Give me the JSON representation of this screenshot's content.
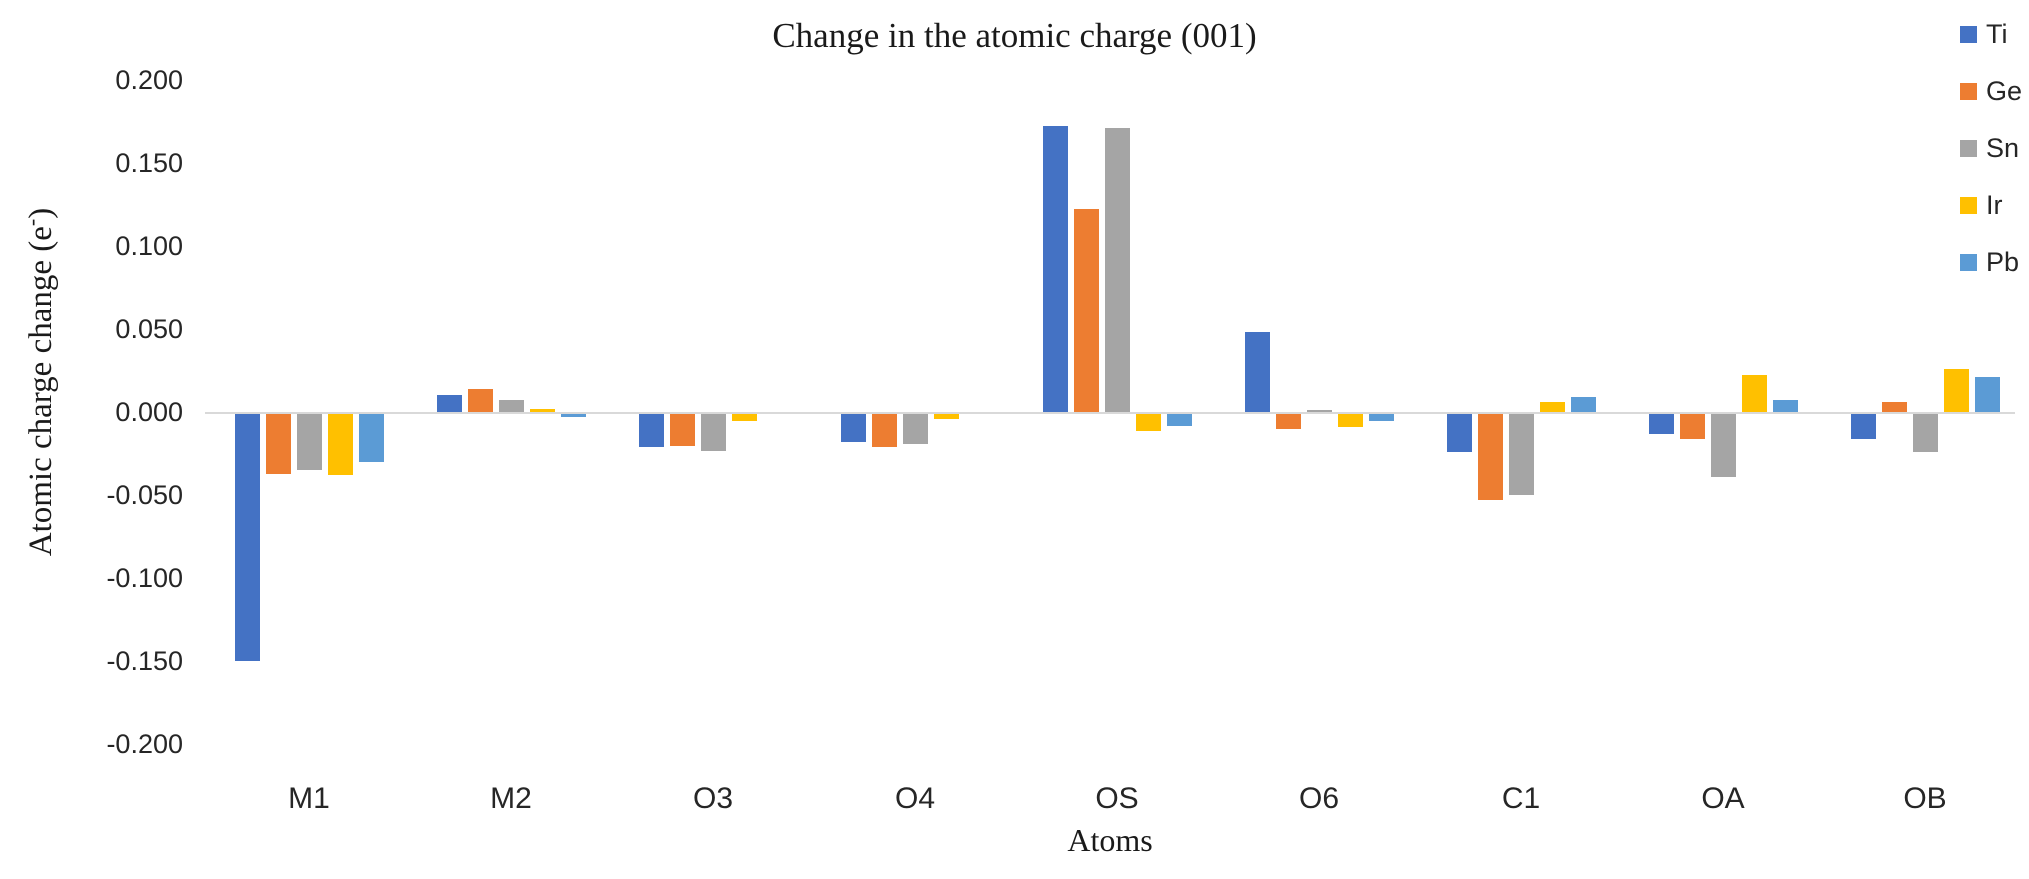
{
  "title": "Change in the atomic charge (001)",
  "y_axis": {
    "pre": "Atomic charge change (e",
    "sup": "-",
    "post": ")"
  },
  "x_axis_title": "Atoms",
  "colors": {
    "ti_blue": "#4472C4",
    "ge_orange": "#ED7D31",
    "sn_gray": "#A5A5A5",
    "ir_gold": "#FFC000",
    "pb_lightblue": "#5B9BD5",
    "axis_line": "#D9D9D9",
    "text": "#262626"
  },
  "chart_data": {
    "type": "bar",
    "title": "Change in the atomic charge (001)",
    "xlabel": "Atoms",
    "ylabel": "Atomic charge change (e-)",
    "categories": [
      "M1",
      "M2",
      "O3",
      "O4",
      "OS",
      "O6",
      "C1",
      "OA",
      "OB"
    ],
    "series": [
      {
        "name": "Ti",
        "color": "#4472C4",
        "values": [
          -0.149,
          0.01,
          -0.02,
          -0.017,
          0.172,
          0.048,
          -0.023,
          -0.012,
          -0.015
        ]
      },
      {
        "name": "Ge",
        "color": "#ED7D31",
        "values": [
          -0.036,
          0.014,
          -0.019,
          -0.02,
          0.122,
          -0.009,
          -0.052,
          -0.015,
          0.006
        ]
      },
      {
        "name": "Sn",
        "color": "#A5A5A5",
        "values": [
          -0.034,
          0.007,
          -0.022,
          -0.018,
          0.171,
          0.001,
          -0.049,
          -0.038,
          -0.023
        ]
      },
      {
        "name": "Ir",
        "color": "#FFC000",
        "values": [
          -0.037,
          0.002,
          -0.004,
          -0.003,
          -0.01,
          -0.008,
          0.006,
          0.022,
          0.026
        ]
      },
      {
        "name": "Pb",
        "color": "#5B9BD5",
        "values": [
          -0.029,
          -0.002,
          0.0,
          0.0,
          -0.007,
          -0.004,
          0.009,
          0.007,
          0.021
        ]
      }
    ],
    "ylim": [
      -0.2,
      0.2
    ],
    "ytick_step": 0.05,
    "ytick_labels": [
      "0.200",
      "0.150",
      "0.100",
      "0.050",
      "0.000",
      "-0.050",
      "-0.100",
      "-0.150",
      "-0.200"
    ],
    "grid": false,
    "legend_position": "top-right",
    "legend_entries": [
      "Ti",
      "Ge",
      "Sn",
      "Ir",
      "Pb"
    ]
  }
}
